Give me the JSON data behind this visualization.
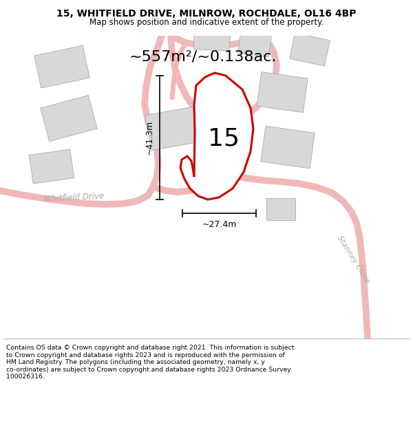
{
  "title_line1": "15, WHITFIELD DRIVE, MILNROW, ROCHDALE, OL16 4BP",
  "title_line2": "Map shows position and indicative extent of the property.",
  "area_label": "~557m²/~0.138ac.",
  "plot_number": "15",
  "dim_width": "~27.4m",
  "dim_height": "~41.3m",
  "road_label": "Whitfield Drive",
  "road_label2": "Stanney Close",
  "footer_lines": [
    "Contains OS data © Crown copyright and database right 2021. This information is subject",
    "to Crown copyright and database rights 2023 and is reproduced with the permission of",
    "HM Land Registry. The polygons (including the associated geometry, namely x, y",
    "co-ordinates) are subject to Crown copyright and database rights 2023 Ordnance Survey",
    "100026316."
  ],
  "bg_color": "#f2f2f2",
  "plot_fill": "#ffffff",
  "plot_outline": "#cc0000",
  "road_color": "#f0b8b8",
  "building_color": "#d8d8d8",
  "dim_color": "#111111"
}
